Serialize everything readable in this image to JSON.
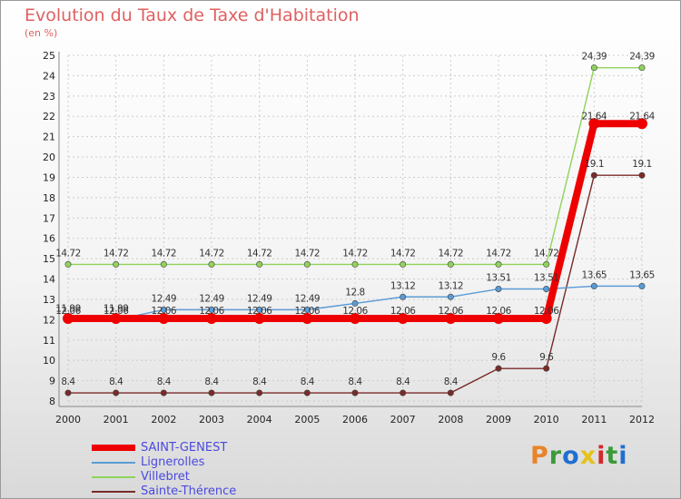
{
  "header": {
    "title": "Evolution du Taux de Taxe d'Habitation",
    "unit_label": "(en %)"
  },
  "logo": {
    "text": "Proxiti",
    "colors": [
      "#e8842a",
      "#3a9a3a",
      "#1f6fd0",
      "#e6c21a",
      "#d02a2a",
      "#3a9a3a",
      "#1f6fd0"
    ]
  },
  "chart_data": {
    "type": "line",
    "title": "Evolution du Taux de Taxe d'Habitation",
    "ylabel": "(en %)",
    "xlabel": "",
    "x": [
      "2000",
      "2001",
      "2002",
      "2003",
      "2004",
      "2005",
      "2006",
      "2007",
      "2008",
      "2009",
      "2010",
      "2011",
      "2012"
    ],
    "ylim": [
      8,
      25
    ],
    "yticks": [
      "8",
      "9",
      "10",
      "11",
      "12",
      "13",
      "14",
      "15",
      "16",
      "17",
      "18",
      "19",
      "20",
      "21",
      "22",
      "23",
      "24",
      "25"
    ],
    "series": [
      {
        "name": "SAINT-GENEST",
        "color": "#ee0000",
        "values": [
          12.06,
          12.06,
          12.06,
          12.06,
          12.06,
          12.06,
          12.06,
          12.06,
          12.06,
          12.06,
          12.06,
          21.64,
          21.64
        ],
        "labels": [
          "12.06",
          "12.06",
          "12.06",
          "12.06",
          "12.06",
          "12.06",
          "12.06",
          "12.06",
          "12.06",
          "12.06",
          "12.06",
          "21.64",
          "21.64"
        ]
      },
      {
        "name": "Lignerolles",
        "color": "#5b9bd5",
        "values": [
          11.99,
          11.99,
          12.49,
          12.49,
          12.49,
          12.49,
          12.8,
          13.12,
          13.12,
          13.51,
          13.51,
          13.65,
          13.65
        ],
        "labels": [
          "11.99",
          "11.99",
          "12.49",
          "12.49",
          "12.49",
          "12.49",
          "12.8",
          "13.12",
          "13.12",
          "13.51",
          "13.51",
          "13.65",
          "13.65"
        ]
      },
      {
        "name": "Villebret",
        "color": "#8fd35a",
        "values": [
          14.72,
          14.72,
          14.72,
          14.72,
          14.72,
          14.72,
          14.72,
          14.72,
          14.72,
          14.72,
          14.72,
          24.39,
          24.39
        ],
        "labels": [
          "14.72",
          "14.72",
          "14.72",
          "14.72",
          "14.72",
          "14.72",
          "14.72",
          "14.72",
          "14.72",
          "14.72",
          "14.72",
          "24.39",
          "24.39"
        ]
      },
      {
        "name": "Sainte-Thérence",
        "color": "#7a2a2a",
        "values": [
          8.4,
          8.4,
          8.4,
          8.4,
          8.4,
          8.4,
          8.4,
          8.4,
          8.4,
          9.6,
          9.6,
          19.1,
          19.1
        ],
        "labels": [
          "8.4",
          "8.4",
          "8.4",
          "8.4",
          "8.4",
          "8.4",
          "8.4",
          "8.4",
          "8.4",
          "9.6",
          "9.6",
          "19.1",
          "19.1"
        ]
      }
    ],
    "legend_position": "bottom-left"
  }
}
